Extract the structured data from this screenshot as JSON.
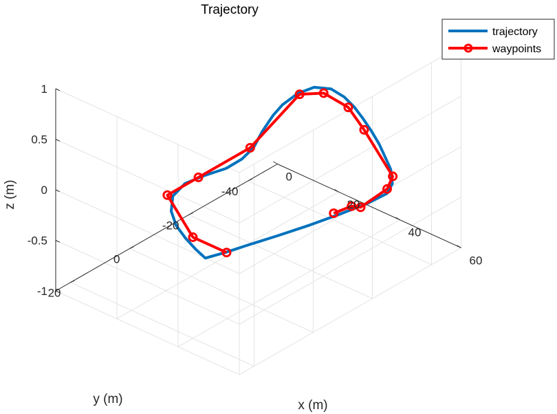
{
  "chart_data": {
    "type": "line",
    "title": "Trajectory",
    "xlabel": "x (m)",
    "ylabel": "y (m)",
    "zlabel": "z (m)",
    "xlim": [
      0,
      60
    ],
    "ylim": [
      -50,
      25
    ],
    "zlim": [
      -1,
      1
    ],
    "x_ticks": [
      "0",
      "20",
      "40",
      "60"
    ],
    "y_ticks": [
      "20",
      "0",
      "-20",
      "-40"
    ],
    "z_ticks": [
      "1",
      "0.5",
      "0",
      "-0.5",
      "-1"
    ],
    "grid": true,
    "legend_position": "top-right",
    "series": [
      {
        "name": "trajectory",
        "color": "#0072BD",
        "style": "solid-thick",
        "points": [
          [
            48.9,
            25.0,
            0
          ],
          [
            44.5,
            23.6,
            0
          ],
          [
            38.9,
            21.4,
            0
          ],
          [
            33.3,
            18.7,
            0
          ],
          [
            27.8,
            14.7,
            0
          ],
          [
            23.3,
            9.5,
            0
          ],
          [
            21.5,
            3.5,
            0
          ],
          [
            22.5,
            -2.0,
            0
          ],
          [
            24.2,
            -7.6,
            0
          ],
          [
            24.1,
            -13.0,
            0
          ],
          [
            22.6,
            -18.5,
            0
          ],
          [
            19.0,
            -25.2,
            0
          ],
          [
            15.9,
            -32.0,
            0
          ],
          [
            14.2,
            -37.0,
            0
          ],
          [
            13.4,
            -43.0,
            0
          ],
          [
            14.4,
            -47.5,
            0
          ],
          [
            18.0,
            -49.5,
            0
          ],
          [
            23.0,
            -48.8,
            0
          ],
          [
            28.0,
            -47.0,
            0
          ],
          [
            33.3,
            -44.5,
            0
          ],
          [
            38.9,
            -41.6,
            0
          ],
          [
            44.4,
            -38.5,
            0
          ],
          [
            49.5,
            -35.2,
            0
          ],
          [
            54.4,
            -32.0,
            0
          ],
          [
            59.3,
            -27.5,
            0
          ],
          [
            61.4,
            -23.5,
            0
          ],
          [
            61.0,
            -17.0,
            0
          ],
          [
            59.3,
            -9.2,
            0
          ],
          [
            57.4,
            -1.5,
            0
          ],
          [
            55.0,
            6.6,
            0
          ],
          [
            52.4,
            14.7,
            0
          ],
          [
            50.8,
            20.0,
            0
          ],
          [
            48.9,
            25.0,
            0
          ]
        ]
      },
      {
        "name": "waypoints",
        "color": "#FF0000",
        "marker": "circle",
        "points": [
          [
            51.0,
            20.0,
            0
          ],
          [
            40.0,
            20.0,
            0
          ],
          [
            22.0,
            10.0,
            0
          ],
          [
            22.0,
            -0.5,
            0
          ],
          [
            22.0,
            -18.0,
            0
          ],
          [
            14.0,
            -43.0,
            0
          ],
          [
            18.0,
            -47.0,
            0
          ],
          [
            27.0,
            -46.0,
            0
          ],
          [
            37.0,
            -41.0,
            0
          ],
          [
            57.0,
            -30.0,
            0
          ],
          [
            60.0,
            -25.0,
            0
          ],
          [
            61.0,
            -15.0,
            0
          ],
          [
            59.0,
            -14.0,
            0
          ],
          [
            58.0,
            -9.0,
            0
          ]
        ]
      }
    ]
  }
}
